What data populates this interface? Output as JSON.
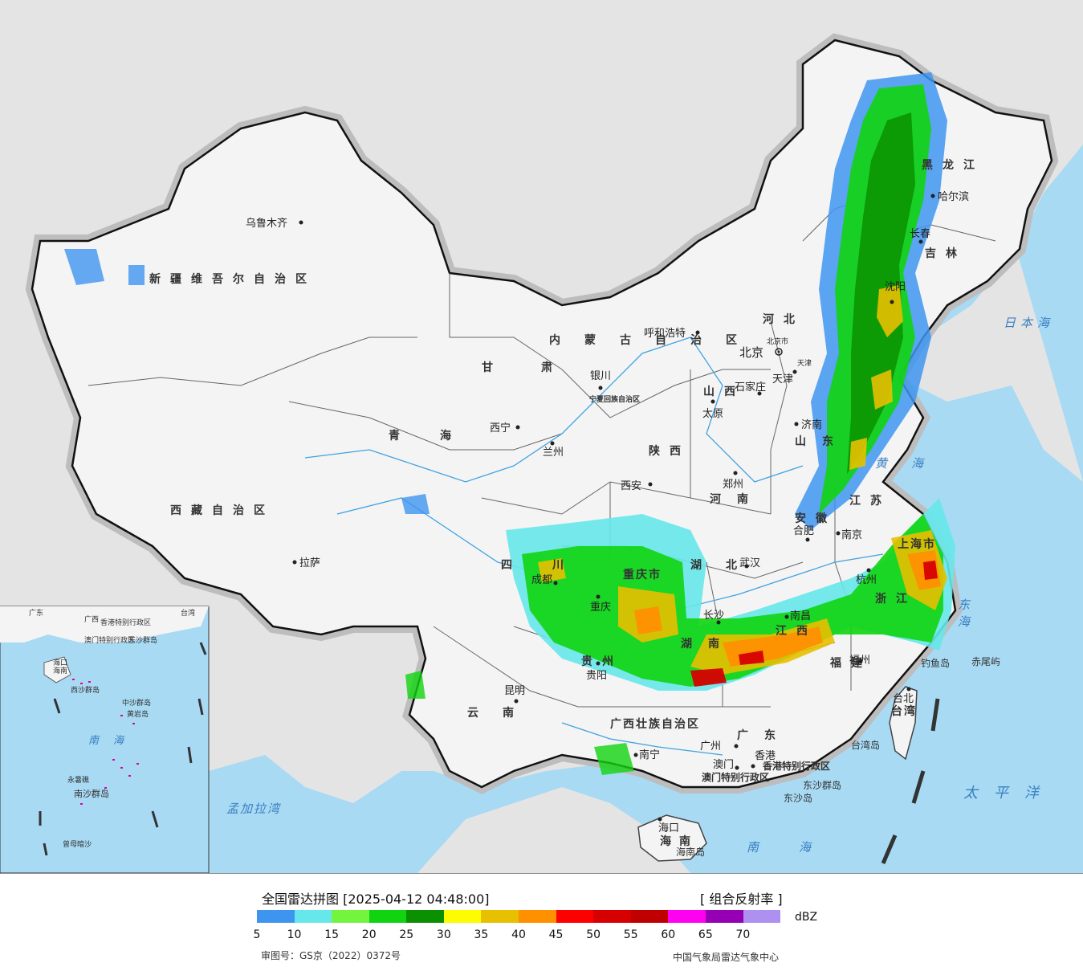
{
  "map": {
    "provinces": [
      {
        "id": "xinjiang",
        "label": "新疆维吾尔自治区"
      },
      {
        "id": "xizang",
        "label": "西藏自治区"
      },
      {
        "id": "qinghai",
        "label": "青海"
      },
      {
        "id": "gansu",
        "label": "甘肃"
      },
      {
        "id": "neimenggu",
        "label": "内蒙古自治区"
      },
      {
        "id": "heilongjiang",
        "label": "黑龙江"
      },
      {
        "id": "jilin",
        "label": "吉林"
      },
      {
        "id": "sichuan",
        "label": "四川"
      },
      {
        "id": "yunnan",
        "label": "云南"
      },
      {
        "id": "shanxi",
        "label": "山西"
      },
      {
        "id": "shaanxi",
        "label": "陕西"
      },
      {
        "id": "henan",
        "label": "河南"
      },
      {
        "id": "hebei",
        "label": "河北"
      },
      {
        "id": "shandong",
        "label": "山东"
      },
      {
        "id": "hubei",
        "label": "湖北"
      },
      {
        "id": "hunan",
        "label": "湖南"
      },
      {
        "id": "jiangxi",
        "label": "江西"
      },
      {
        "id": "anhui",
        "label": "安徽"
      },
      {
        "id": "jiangsu",
        "label": "江苏"
      },
      {
        "id": "zhejiang",
        "label": "浙江"
      },
      {
        "id": "fujian",
        "label": "福建"
      },
      {
        "id": "guangdong",
        "label": "广东"
      },
      {
        "id": "guangxi",
        "label": "广西壮族自治区"
      },
      {
        "id": "guizhou",
        "label": "贵州"
      },
      {
        "id": "hainan",
        "label": "海南"
      },
      {
        "id": "taiwan",
        "label": "台湾"
      },
      {
        "id": "chongqing",
        "label": "重庆市"
      },
      {
        "id": "ningxia",
        "label": "宁夏回族自治区"
      },
      {
        "id": "shanghai",
        "label": "上海市"
      }
    ],
    "cities": [
      {
        "id": "urumqi",
        "label": "乌鲁木齐"
      },
      {
        "id": "lhasa",
        "label": "拉萨"
      },
      {
        "id": "xining",
        "label": "西宁"
      },
      {
        "id": "lanzhou",
        "label": "兰州"
      },
      {
        "id": "yinchuan",
        "label": "银川"
      },
      {
        "id": "hohhot",
        "label": "呼和浩特"
      },
      {
        "id": "beijing",
        "label": "北京"
      },
      {
        "id": "tianjin",
        "label": "天津"
      },
      {
        "id": "shijiazhuang",
        "label": "石家庄"
      },
      {
        "id": "taiyuan",
        "label": "太原"
      },
      {
        "id": "xian",
        "label": "西安"
      },
      {
        "id": "zhengzhou",
        "label": "郑州"
      },
      {
        "id": "jinan",
        "label": "济南"
      },
      {
        "id": "harbin",
        "label": "哈尔滨"
      },
      {
        "id": "changchun",
        "label": "长春"
      },
      {
        "id": "shenyang",
        "label": "沈阳"
      },
      {
        "id": "chengdu",
        "label": "成都"
      },
      {
        "id": "chongqing_c",
        "label": "重庆"
      },
      {
        "id": "guiyang",
        "label": "贵阳"
      },
      {
        "id": "kunming",
        "label": "昆明"
      },
      {
        "id": "wuhan",
        "label": "武汉"
      },
      {
        "id": "changsha",
        "label": "长沙"
      },
      {
        "id": "nanchang",
        "label": "南昌"
      },
      {
        "id": "hefei",
        "label": "合肥"
      },
      {
        "id": "nanjing",
        "label": "南京"
      },
      {
        "id": "hangzhou",
        "label": "杭州"
      },
      {
        "id": "fuzhou",
        "label": "福州"
      },
      {
        "id": "taibei",
        "label": "台北"
      },
      {
        "id": "guangzhou",
        "label": "广州"
      },
      {
        "id": "nanning",
        "label": "南宁"
      },
      {
        "id": "haikou",
        "label": "海口"
      },
      {
        "id": "xianggang",
        "label": "香港"
      },
      {
        "id": "aomen",
        "label": "澳门"
      }
    ],
    "seas": [
      {
        "id": "riben_hai",
        "label": "日本海"
      },
      {
        "id": "huang_hai",
        "label": "黄海"
      },
      {
        "id": "dong_hai",
        "label": "东海"
      },
      {
        "id": "nan_hai",
        "label": "南海"
      },
      {
        "id": "taipingyang",
        "label": "太平洋"
      },
      {
        "id": "mengjiala",
        "label": "孟加拉湾"
      }
    ],
    "islands": [
      {
        "id": "diaoyu",
        "label": "钓鱼岛"
      },
      {
        "id": "chiwei",
        "label": "赤尾屿"
      },
      {
        "id": "taiwan_dao",
        "label": "台湾岛"
      },
      {
        "id": "dongsha_qundao",
        "label": "东沙群岛"
      },
      {
        "id": "dongsha_dao",
        "label": "东沙岛"
      },
      {
        "id": "hainan_dao",
        "label": "海南岛"
      },
      {
        "id": "xianggang_sar",
        "label": "香港特别行政区"
      },
      {
        "id": "aomen_sar",
        "label": "澳门特别行政区"
      }
    ],
    "capital_beijing_extra": "北京市",
    "tianjin_extra": "天津",
    "inset": {
      "labels": [
        "广东",
        "广西",
        "香港特别行政区",
        "澳门特别行政区",
        "台湾",
        "海口",
        "海南",
        "东沙群岛",
        "西沙群岛",
        "中沙群岛",
        "南海",
        "黄岩岛",
        "永暑礁",
        "南沙群岛",
        "曾母暗沙"
      ]
    }
  },
  "legend": {
    "title": "全国雷达拼图 [2025-04-12 04:48:00]",
    "product": "[ 组合反射率 ]",
    "unit": "dBZ",
    "colors": [
      "#3e95f0",
      "#66e7ea",
      "#73f43f",
      "#11d410",
      "#0a9000",
      "#fdfd00",
      "#e7c000",
      "#ff9000",
      "#ff0000",
      "#d60000",
      "#c00000",
      "#ff00f0",
      "#9600b4",
      "#ad90f0"
    ],
    "ticks": [
      "5",
      "10",
      "15",
      "20",
      "25",
      "30",
      "35",
      "40",
      "45",
      "50",
      "55",
      "60",
      "65",
      "70"
    ],
    "approval_no": "审图号：GS京（2022）0372号",
    "agency": "中国气象局雷达气象中心"
  }
}
